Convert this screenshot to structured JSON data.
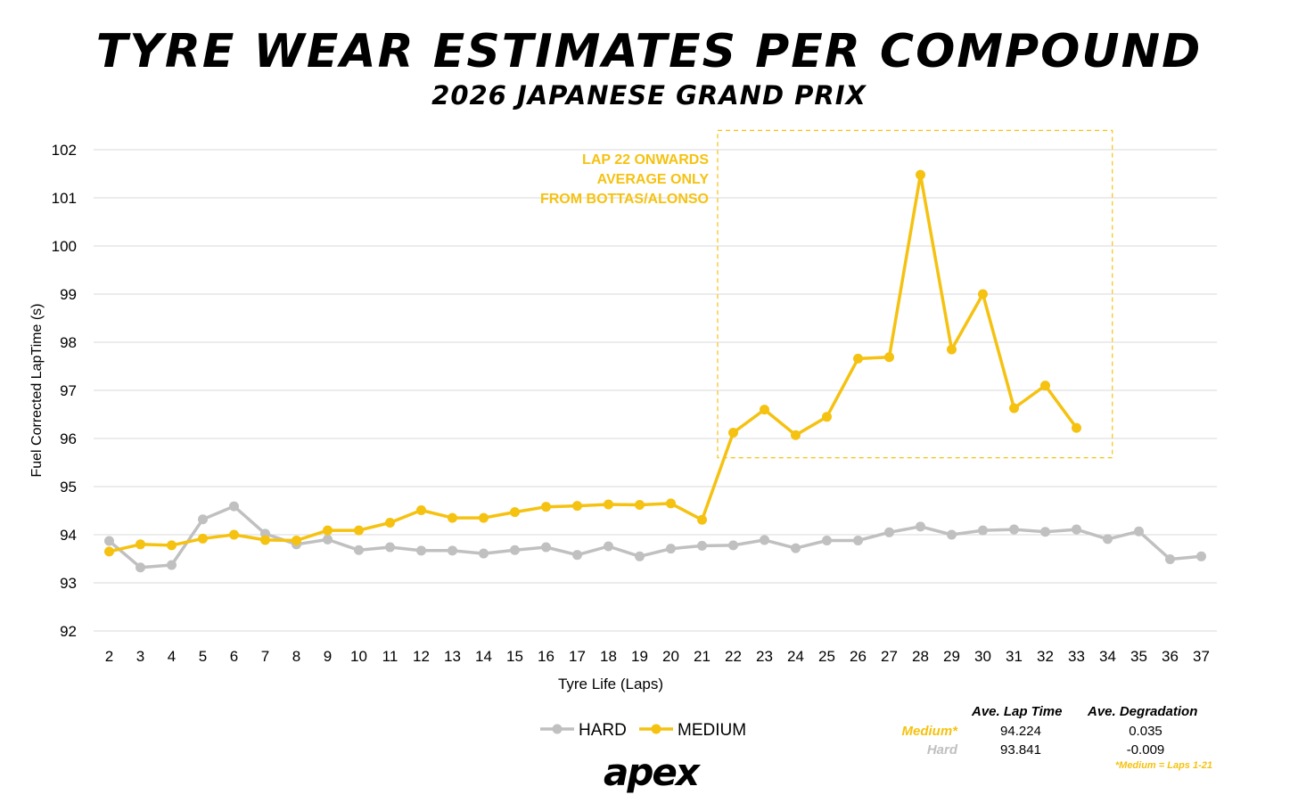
{
  "header": {
    "title": "TYRE WEAR ESTIMATES PER COMPOUND",
    "subtitle": "2026 JAPANESE GRAND PRIX"
  },
  "chart_data": {
    "type": "line",
    "title": "TYRE WEAR ESTIMATES PER COMPOUND",
    "subtitle": "2026 JAPANESE GRAND PRIX",
    "xlabel": "Tyre Life (Laps)",
    "ylabel": "Fuel Corrected LapTime (s)",
    "x": [
      2,
      3,
      4,
      5,
      6,
      7,
      8,
      9,
      10,
      11,
      12,
      13,
      14,
      15,
      16,
      17,
      18,
      19,
      20,
      21,
      22,
      23,
      24,
      25,
      26,
      27,
      28,
      29,
      30,
      31,
      32,
      33,
      34,
      35,
      36,
      37
    ],
    "ylim": [
      92,
      102
    ],
    "yticks": [
      92,
      93,
      94,
      95,
      96,
      97,
      98,
      99,
      100,
      101,
      102
    ],
    "grid": true,
    "legend_position": "bottom-center",
    "series": [
      {
        "name": "HARD",
        "color": "#c0c0c0",
        "values": [
          93.87,
          93.32,
          93.37,
          94.32,
          94.59,
          94.02,
          93.8,
          93.9,
          93.68,
          93.74,
          93.67,
          93.67,
          93.61,
          93.68,
          93.74,
          93.58,
          93.76,
          93.55,
          93.71,
          93.77,
          93.78,
          93.89,
          93.72,
          93.88,
          93.88,
          94.05,
          94.17,
          94.0,
          94.09,
          94.11,
          94.06,
          94.11,
          93.91,
          94.07,
          93.49,
          93.55
        ]
      },
      {
        "name": "MEDIUM",
        "color": "#f5c211",
        "values": [
          93.65,
          93.8,
          93.78,
          93.92,
          94.0,
          93.89,
          93.88,
          94.09,
          94.09,
          94.25,
          94.51,
          94.35,
          94.35,
          94.47,
          94.58,
          94.6,
          94.63,
          94.62,
          94.65,
          94.31,
          96.12,
          96.6,
          96.07,
          96.45,
          97.66,
          97.69,
          101.48,
          97.85,
          99.0,
          96.63,
          97.1,
          96.22,
          null,
          null,
          null,
          null
        ]
      }
    ],
    "annotation": {
      "lines": [
        "LAP 22 ONWARDS",
        "AVERAGE ONLY",
        "FROM BOTTAS/ALONSO"
      ],
      "box_x_range": [
        22,
        33
      ],
      "box_y_range": [
        95.6,
        102.4
      ]
    }
  },
  "stats": {
    "headers": [
      "Ave. Lap Time",
      "Ave. Degradation"
    ],
    "rows": [
      {
        "label": "Medium*",
        "lap_time": "94.224",
        "degradation": "0.035",
        "color": "#f5c211"
      },
      {
        "label": "Hard",
        "lap_time": "93.841",
        "degradation": "-0.009",
        "color": "#c0c0c0"
      }
    ],
    "note": "*Medium = Laps 1-21"
  },
  "brand": {
    "logo_text": "apex"
  }
}
